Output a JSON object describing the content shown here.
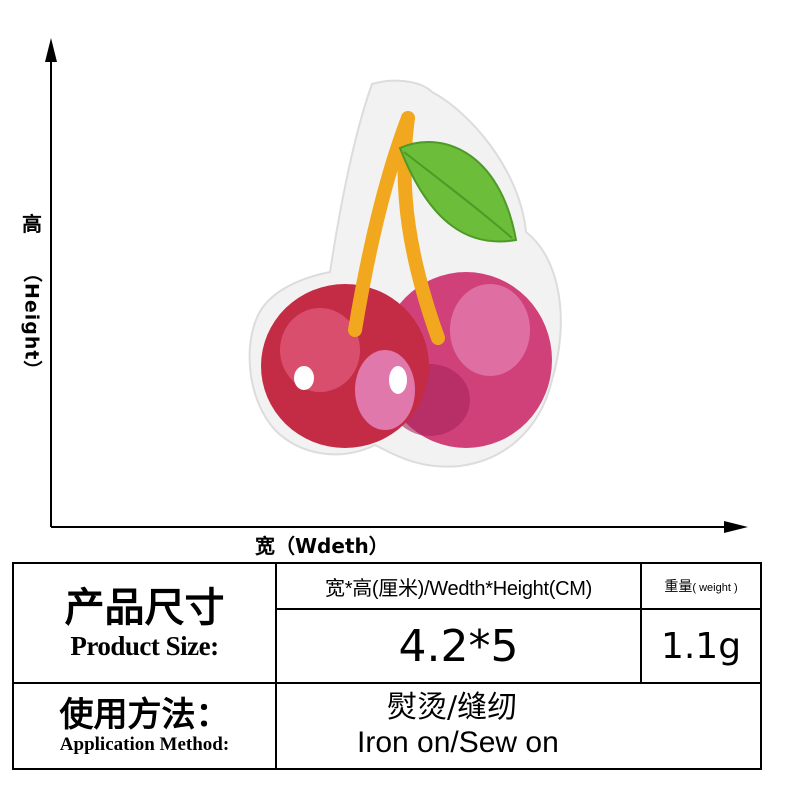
{
  "axes": {
    "height_cn": "高",
    "height_en": "（Height）",
    "width_label": "宽（Wdeth）"
  },
  "table": {
    "product_size_cn": "产品尺寸",
    "product_size_en": "Product Size:",
    "header_size": "宽*高(厘米)/Wedth*Height(CM)",
    "header_weight_cn": "重量",
    "header_weight_en": "( weight )",
    "size_value": "4.2*5",
    "weight_value": "1.1g",
    "application_cn": "使用方法：",
    "application_en": "Application Method:",
    "method_cn": "熨烫/缝纫",
    "method_en": "Iron on/Sew on"
  },
  "colors": {
    "felt_white": "#f2f2f2",
    "cherry_red": "#c8304a",
    "cherry_pink": "#d85a9c",
    "stem_orange": "#f2a81e",
    "leaf_green": "#6bbd3a"
  }
}
